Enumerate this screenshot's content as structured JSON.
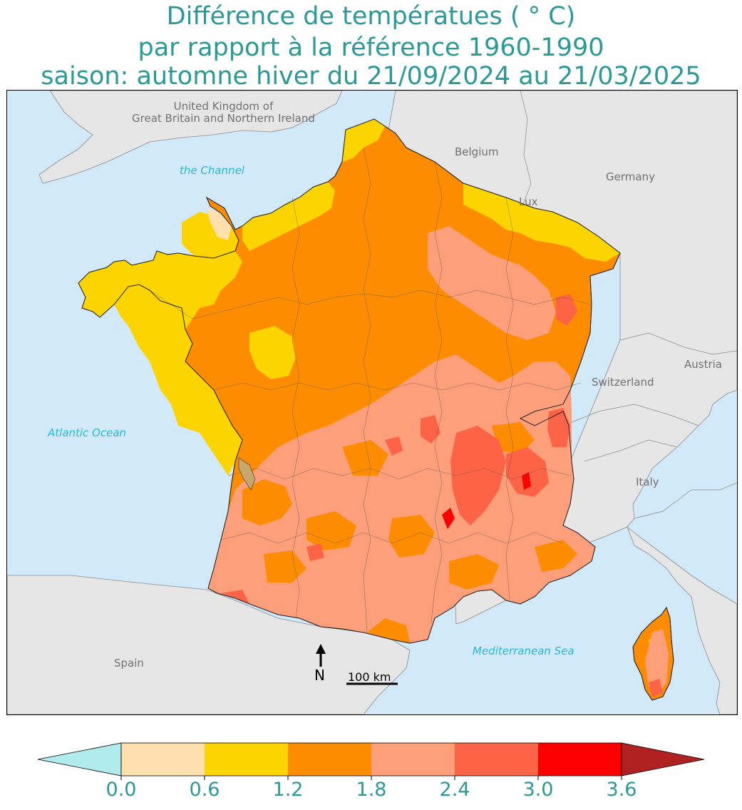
{
  "title": {
    "line1": "Différence de températues ( ° C)",
    "line2": "par rapport à la référence 1960-1990",
    "line3": "saison: automne hiver du 21/09/2024 au 21/03/2025"
  },
  "map": {
    "labels": {
      "uk": [
        "United Kingdom of",
        "Great Britain and Northern Ireland"
      ],
      "belgium": "Belgium",
      "germany": "Germany",
      "lux": "Lux",
      "austria": "Austria",
      "switzerland": "Switzerland",
      "italy": "Italy",
      "spain": "Spain",
      "channel": "the Channel",
      "atlantic": "Atlantic Ocean",
      "mediterranean": "Mediterranean Sea"
    },
    "north_arrow": "N",
    "scale_bar": "100 km",
    "colors": {
      "sea": "#d1e9f8",
      "land": "#e6e6e6",
      "border": "#999999"
    }
  },
  "colorbar": {
    "ticks": [
      "0.0",
      "0.6",
      "1.2",
      "1.8",
      "2.4",
      "3.0",
      "3.6"
    ],
    "colors": [
      "#b0ecee",
      "#fde0ad",
      "#fcd500",
      "#fd8c00",
      "#fd9f7a",
      "#fd6346",
      "#fc0000",
      "#b02121"
    ],
    "tick_color": "#2a9a96"
  }
}
